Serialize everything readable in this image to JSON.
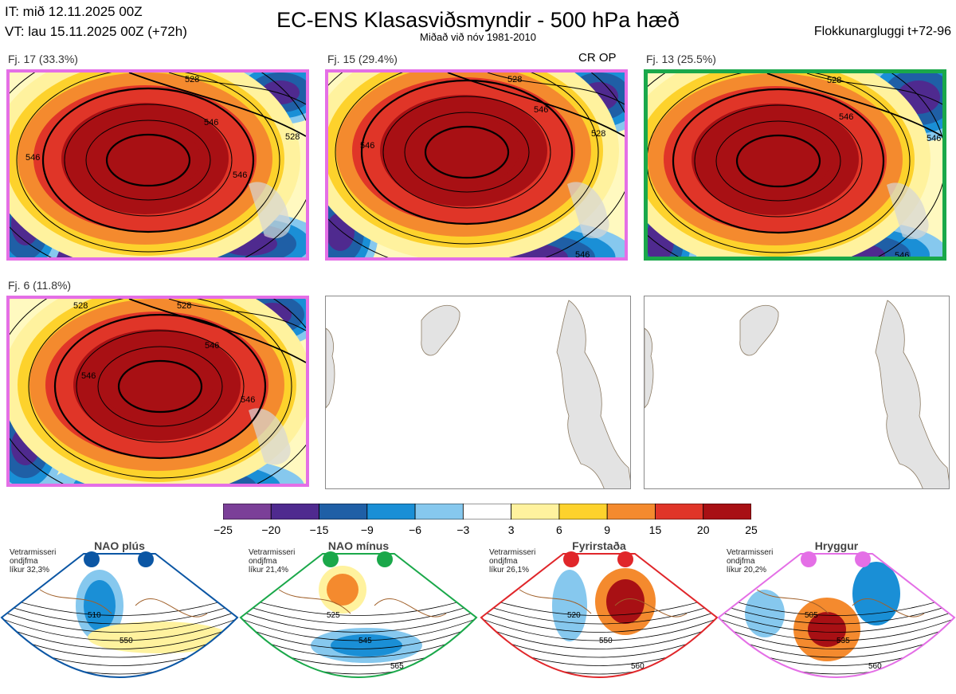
{
  "header": {
    "issue_time": "IT: mið 12.11.2025 00Z",
    "valid_time": "VT: lau 15.11.2025 00Z  (+72h)",
    "title": "EC-ENS Klasasviðsmyndir - 500 hPa hæð",
    "subtitle": "Miðað við nóv 1981-2010",
    "window": "Flokkunargluggi t+72-96"
  },
  "panels": [
    {
      "label": "Fj. 17 (33.3%)",
      "regime": "Hryggur",
      "contour_labels": [
        "528",
        "546",
        "546",
        "546",
        "528"
      ]
    },
    {
      "label": "Fj. 15 (29.4%)",
      "regime": "Hryggur",
      "marker": "CR OP",
      "contour_labels": [
        "528",
        "546",
        "546",
        "528",
        "546"
      ]
    },
    {
      "label": "Fj. 13 (25.5%)",
      "regime": "NAO mínus",
      "contour_labels": [
        "528",
        "546",
        "546",
        "546"
      ]
    },
    {
      "label": "Fj. 6 (11.8%)",
      "regime": "Hryggur",
      "contour_labels": [
        "528",
        "528",
        "546",
        "546",
        "546"
      ]
    }
  ],
  "colorbar": {
    "ticks": [
      "−25",
      "−20",
      "−15",
      "−9",
      "−6",
      "−3",
      "3",
      "6",
      "9",
      "15",
      "20",
      "25"
    ],
    "colors": [
      "#7b3f98",
      "#4f2a8f",
      "#1f5fa6",
      "#1a8fd6",
      "#86c8ee",
      "#ffffff",
      "#fff29e",
      "#fdd22c",
      "#f48a2e",
      "#e03528",
      "#a81014"
    ]
  },
  "regimes": [
    {
      "name": "NAO plús",
      "note": [
        "Vetrarmisseri",
        "ondjfma",
        "líkur 32,3%"
      ],
      "color": "#0b56a4",
      "contours": [
        "510",
        "550"
      ]
    },
    {
      "name": "NAO mínus",
      "note": [
        "Vetrarmisseri",
        "ondjfma",
        "líkur 21,4%"
      ],
      "color": "#1aa84a",
      "contours": [
        "525",
        "545",
        "565"
      ]
    },
    {
      "name": "Fyrirstaða",
      "note": [
        "Vetrarmisseri",
        "ondjfma",
        "líkur 26,1%"
      ],
      "color": "#e0262a",
      "contours": [
        "520",
        "550",
        "560"
      ]
    },
    {
      "name": "Hryggur",
      "note": [
        "Vetrarmisseri",
        "ondjfma",
        "líkur 20,2%"
      ],
      "color": "#e46fe6",
      "contours": [
        "505",
        "535",
        "560"
      ]
    }
  ]
}
